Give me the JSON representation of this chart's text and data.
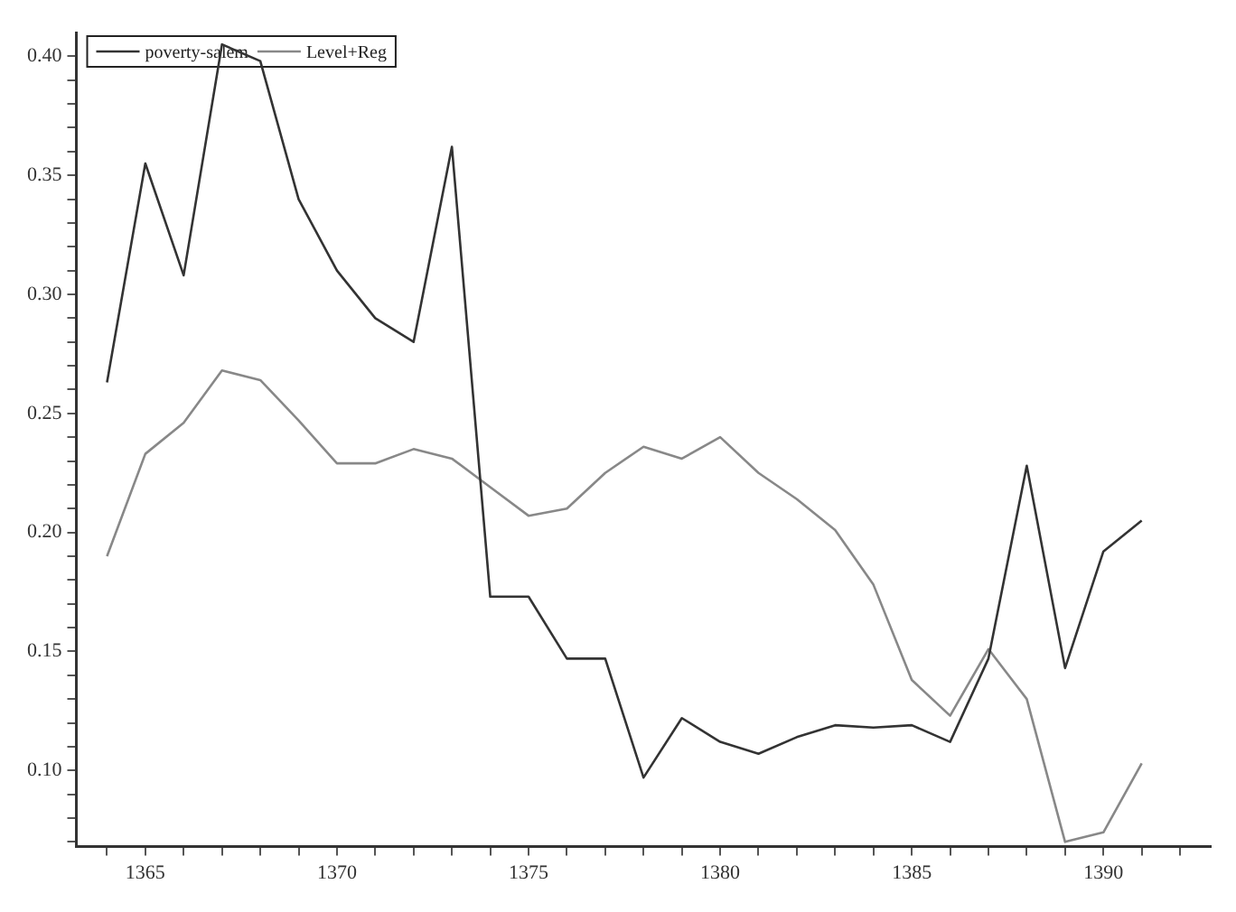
{
  "chart_data": {
    "type": "line",
    "x": [
      1364,
      1365,
      1366,
      1367,
      1368,
      1369,
      1370,
      1371,
      1372,
      1373,
      1374,
      1375,
      1376,
      1377,
      1378,
      1379,
      1380,
      1381,
      1382,
      1383,
      1384,
      1385,
      1386,
      1387,
      1388,
      1389,
      1390,
      1391
    ],
    "series": [
      {
        "name": "poverty-salem",
        "color": "#333333",
        "values": [
          0.263,
          0.355,
          0.308,
          0.405,
          0.398,
          0.34,
          0.31,
          0.29,
          0.28,
          0.362,
          0.173,
          0.173,
          0.147,
          0.147,
          0.097,
          0.122,
          0.112,
          0.107,
          0.114,
          0.119,
          0.118,
          0.119,
          0.112,
          0.147,
          0.228,
          0.143,
          0.192,
          0.205
        ]
      },
      {
        "name": "Level+Reg",
        "color": "#888888",
        "values": [
          0.19,
          0.233,
          0.246,
          0.268,
          0.264,
          0.247,
          0.229,
          0.229,
          0.235,
          0.231,
          0.219,
          0.207,
          0.21,
          0.225,
          0.236,
          0.231,
          0.24,
          0.225,
          0.214,
          0.201,
          0.178,
          0.138,
          0.123,
          0.151,
          0.13,
          0.07,
          0.074,
          0.103
        ]
      }
    ],
    "xlim": [
      1363.2,
      1392.8
    ],
    "ylim": [
      0.068,
      0.41
    ],
    "xticks": [
      {
        "value": 1364,
        "label": null
      },
      1365,
      {
        "value": 1366,
        "label": null
      },
      {
        "value": 1367,
        "label": null
      },
      {
        "value": 1368,
        "label": null
      },
      {
        "value": 1369,
        "label": null
      },
      1370,
      {
        "value": 1371,
        "label": null
      },
      {
        "value": 1372,
        "label": null
      },
      {
        "value": 1373,
        "label": null
      },
      {
        "value": 1374,
        "label": null
      },
      1375,
      {
        "value": 1376,
        "label": null
      },
      {
        "value": 1377,
        "label": null
      },
      {
        "value": 1378,
        "label": null
      },
      {
        "value": 1379,
        "label": null
      },
      1380,
      {
        "value": 1381,
        "label": null
      },
      {
        "value": 1382,
        "label": null
      },
      {
        "value": 1383,
        "label": null
      },
      {
        "value": 1384,
        "label": null
      },
      1385,
      {
        "value": 1386,
        "label": null
      },
      {
        "value": 1387,
        "label": null
      },
      {
        "value": 1388,
        "label": null
      },
      {
        "value": 1389,
        "label": null
      },
      1390,
      {
        "value": 1391,
        "label": null
      },
      {
        "value": 1392,
        "label": null
      }
    ],
    "yticks": [
      {
        "value": 0.07,
        "label": null
      },
      {
        "value": 0.08,
        "label": null
      },
      {
        "value": 0.09,
        "label": null
      },
      {
        "value": 0.1,
        "label": "0.10"
      },
      {
        "value": 0.11,
        "label": null
      },
      {
        "value": 0.12,
        "label": null
      },
      {
        "value": 0.13,
        "label": null
      },
      {
        "value": 0.14,
        "label": null
      },
      {
        "value": 0.15,
        "label": "0.15"
      },
      {
        "value": 0.16,
        "label": null
      },
      {
        "value": 0.17,
        "label": null
      },
      {
        "value": 0.18,
        "label": null
      },
      {
        "value": 0.19,
        "label": null
      },
      {
        "value": 0.2,
        "label": "0.20"
      },
      {
        "value": 0.21,
        "label": null
      },
      {
        "value": 0.22,
        "label": null
      },
      {
        "value": 0.23,
        "label": null
      },
      {
        "value": 0.24,
        "label": null
      },
      {
        "value": 0.25,
        "label": "0.25"
      },
      {
        "value": 0.26,
        "label": null
      },
      {
        "value": 0.27,
        "label": null
      },
      {
        "value": 0.28,
        "label": null
      },
      {
        "value": 0.29,
        "label": null
      },
      {
        "value": 0.3,
        "label": "0.30"
      },
      {
        "value": 0.31,
        "label": null
      },
      {
        "value": 0.32,
        "label": null
      },
      {
        "value": 0.33,
        "label": null
      },
      {
        "value": 0.34,
        "label": null
      },
      {
        "value": 0.35,
        "label": "0.35"
      },
      {
        "value": 0.36,
        "label": null
      },
      {
        "value": 0.37,
        "label": null
      },
      {
        "value": 0.38,
        "label": null
      },
      {
        "value": 0.39,
        "label": null
      },
      {
        "value": 0.4,
        "label": "0.40"
      }
    ],
    "grid": false,
    "legend": "top left",
    "marker": "none",
    "line_style": "solid"
  }
}
